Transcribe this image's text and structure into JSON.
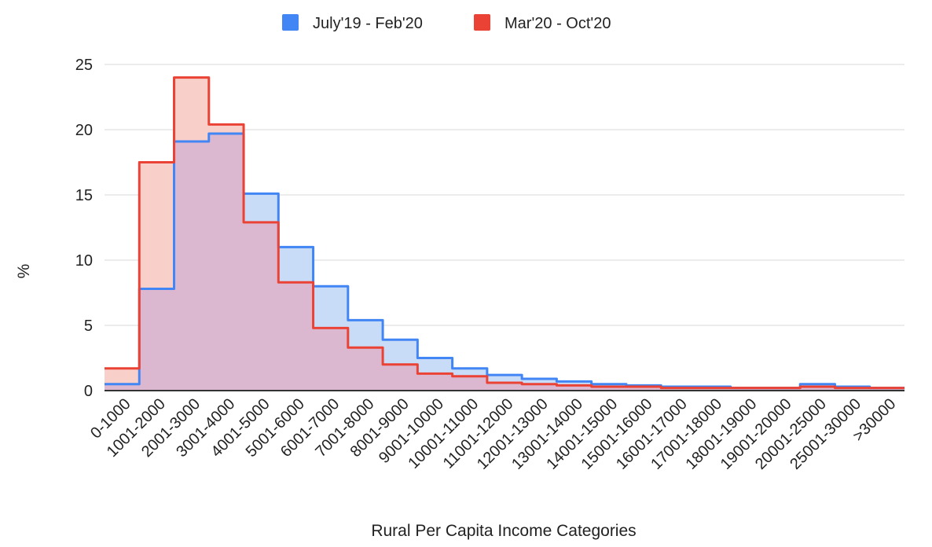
{
  "chart_data": {
    "type": "area",
    "step": true,
    "title": "",
    "xlabel": "Rural Per Capita Income Categories",
    "ylabel": "%",
    "ylim": [
      0,
      25
    ],
    "yticks": [
      0,
      5,
      10,
      15,
      20,
      25
    ],
    "grid": true,
    "legend_position": "top",
    "categories": [
      "0-1000",
      "1001-2000",
      "2001-3000",
      "3001-4000",
      "4001-5000",
      "5001-6000",
      "6001-7000",
      "7001-8000",
      "8001-9000",
      "9001-10000",
      "10001-11000",
      "11001-12000",
      "12001-13000",
      "13001-14000",
      "14001-15000",
      "15001-16000",
      "16001-17000",
      "17001-18000",
      "18001-19000",
      "19001-20000",
      "20001-25000",
      "25001-30000",
      ">30000"
    ],
    "series": [
      {
        "name": "July'19 - Feb'20",
        "color": "#4285f4",
        "fill": "#c9dcf7",
        "values": [
          0.5,
          7.8,
          19.1,
          19.7,
          15.1,
          11.0,
          8.0,
          5.4,
          3.9,
          2.5,
          1.7,
          1.2,
          0.9,
          0.7,
          0.5,
          0.4,
          0.3,
          0.3,
          0.2,
          0.2,
          0.5,
          0.3,
          0.2
        ]
      },
      {
        "name": "Mar'20 - Oct'20",
        "color": "#ea4335",
        "fill": "#f8d0c9",
        "values": [
          1.7,
          17.5,
          24.0,
          20.4,
          12.9,
          8.3,
          4.8,
          3.3,
          2.0,
          1.3,
          1.1,
          0.6,
          0.5,
          0.4,
          0.3,
          0.3,
          0.2,
          0.2,
          0.2,
          0.2,
          0.3,
          0.2,
          0.2
        ]
      }
    ],
    "overlap_fill": "#dbb8cf"
  }
}
